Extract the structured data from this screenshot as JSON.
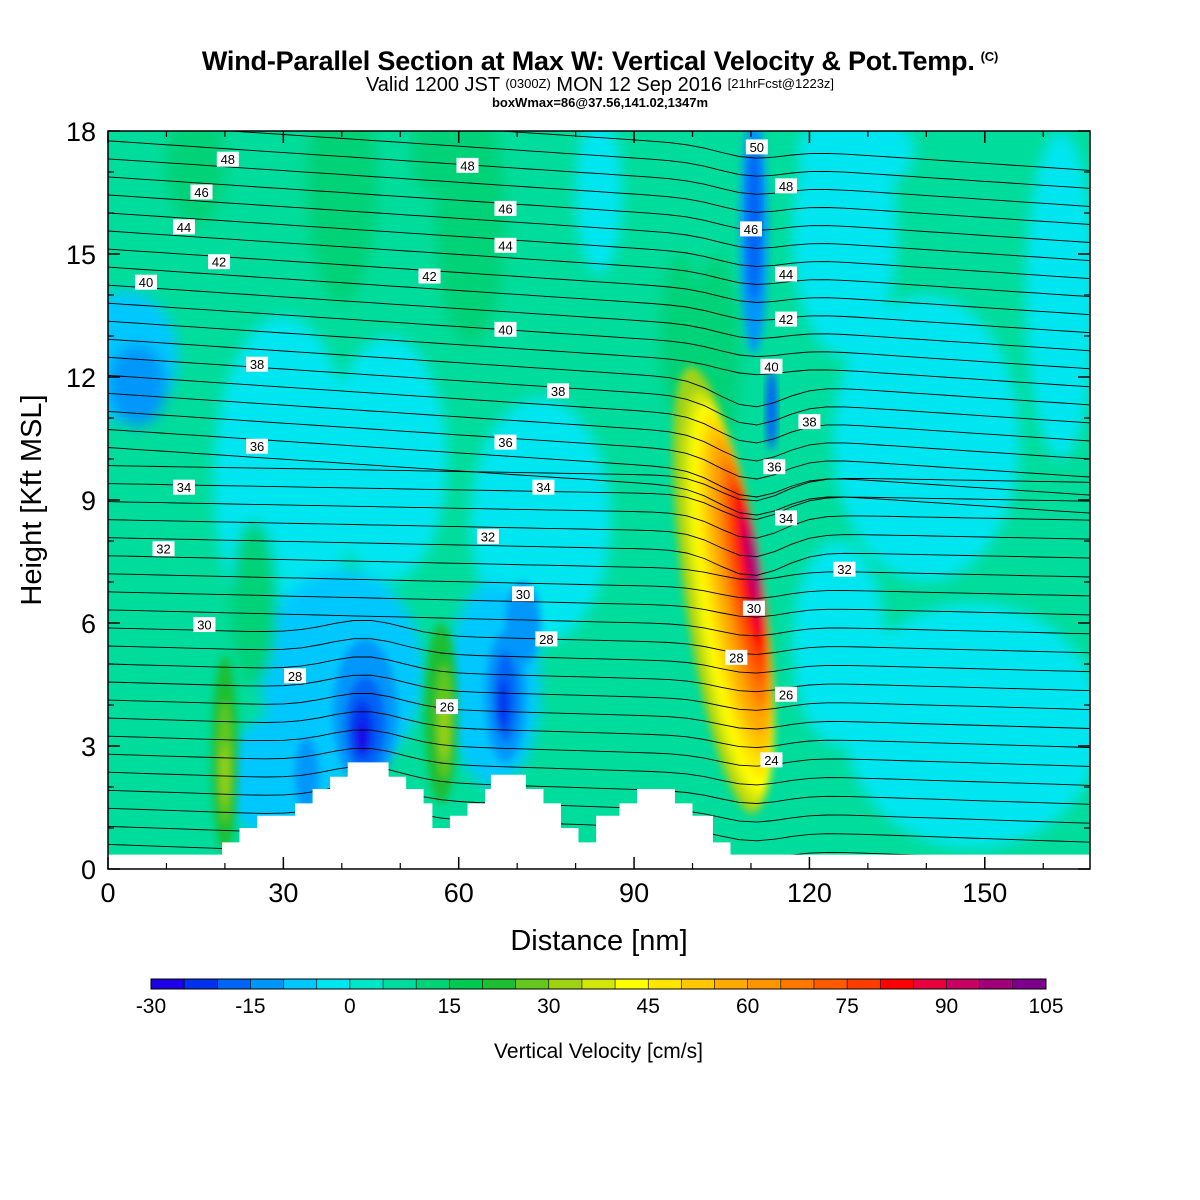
{
  "header": {
    "title": "Wind-Parallel Section at Max W: Vertical Velocity & Pot.Temp.",
    "copyright": "(C)",
    "valid_prefix": "Valid 1200 JST",
    "valid_utc": "(0300Z)",
    "valid_date": "MON 12 Sep 2016",
    "forecast": "[21hrFcst@1223z]",
    "boxwmax": "boxWmax=86@37.56,141.02,1347m"
  },
  "chart_data": {
    "type": "heatmap",
    "subtype": "cross-section contour fill with isentrope contour lines",
    "xlabel": "Distance [nm]",
    "ylabel": "Height [Kft MSL]",
    "xlim": [
      0,
      168
    ],
    "ylim": [
      0,
      18
    ],
    "xticks": [
      "0",
      "30",
      "60",
      "90",
      "120",
      "150"
    ],
    "yticks": [
      "0",
      "3",
      "6",
      "9",
      "12",
      "15",
      "18"
    ],
    "colorbar": {
      "label": "Vertical Velocity [cm/s]",
      "tick_labels": [
        "-30",
        "-15",
        "0",
        "15",
        "30",
        "45",
        "60",
        "75",
        "90",
        "105"
      ],
      "levels": [
        -30,
        -25,
        -20,
        -15,
        -10,
        -5,
        0,
        5,
        10,
        15,
        20,
        25,
        30,
        35,
        40,
        45,
        50,
        55,
        60,
        65,
        70,
        75,
        80,
        85,
        90,
        95,
        100,
        105
      ],
      "colors": [
        "#1e00e6",
        "#0032f0",
        "#0064f5",
        "#0096fa",
        "#00c8ff",
        "#00e6f0",
        "#00e6c8",
        "#00dc9b",
        "#00d278",
        "#00c850",
        "#1ebe32",
        "#64c81e",
        "#a0d214",
        "#d2e60a",
        "#ffff00",
        "#ffe600",
        "#ffc800",
        "#ffaa00",
        "#ff9600",
        "#ff7800",
        "#ff5a00",
        "#ff3c00",
        "#ff0000",
        "#e6003c",
        "#c80064",
        "#a00078",
        "#7d008c"
      ]
    },
    "updraft_core": {
      "x_nm": 110,
      "height_kft": 7,
      "max_cm_s": 105
    },
    "downdraft_cores": [
      {
        "x_nm": 44,
        "height_kft": 3.6,
        "min_cm_s": -30
      },
      {
        "x_nm": 68,
        "height_kft": 4.2,
        "min_cm_s": -25
      },
      {
        "x_nm": 110,
        "height_kft": 15.5,
        "min_cm_s": -20
      },
      {
        "x_nm": 5,
        "height_kft": 12,
        "min_cm_s": -10
      }
    ],
    "terrain_kft": [
      [
        0,
        0.35
      ],
      [
        19.5,
        0.35
      ],
      [
        19.5,
        0.65
      ],
      [
        22.5,
        0.65
      ],
      [
        22.5,
        1.0
      ],
      [
        25.5,
        1.0
      ],
      [
        25.5,
        1.3
      ],
      [
        32,
        1.3
      ],
      [
        32,
        1.6
      ],
      [
        35,
        1.6
      ],
      [
        35,
        1.95
      ],
      [
        38,
        1.95
      ],
      [
        38,
        2.25
      ],
      [
        41,
        2.25
      ],
      [
        41,
        2.6
      ],
      [
        48,
        2.6
      ],
      [
        48,
        2.25
      ],
      [
        51,
        2.25
      ],
      [
        51,
        1.95
      ],
      [
        54,
        1.95
      ],
      [
        54,
        1.6
      ],
      [
        55.5,
        1.6
      ],
      [
        55.5,
        1.0
      ],
      [
        58.5,
        1.0
      ],
      [
        58.5,
        1.3
      ],
      [
        61.5,
        1.3
      ],
      [
        61.5,
        1.6
      ],
      [
        64.5,
        1.6
      ],
      [
        64.5,
        1.95
      ],
      [
        65.5,
        1.95
      ],
      [
        65.5,
        2.3
      ],
      [
        71.5,
        2.3
      ],
      [
        71.5,
        1.95
      ],
      [
        74.5,
        1.95
      ],
      [
        74.5,
        1.6
      ],
      [
        77.5,
        1.6
      ],
      [
        77.5,
        1.0
      ],
      [
        80.5,
        1.0
      ],
      [
        80.5,
        0.65
      ],
      [
        83.5,
        0.65
      ],
      [
        83.5,
        1.3
      ],
      [
        87.5,
        1.3
      ],
      [
        87.5,
        1.6
      ],
      [
        90.5,
        1.6
      ],
      [
        90.5,
        1.95
      ],
      [
        97,
        1.95
      ],
      [
        97,
        1.6
      ],
      [
        100,
        1.6
      ],
      [
        100,
        1.3
      ],
      [
        103.5,
        1.3
      ],
      [
        103.5,
        0.65
      ],
      [
        106.5,
        0.65
      ],
      [
        106.5,
        0.35
      ],
      [
        168,
        0.35
      ]
    ],
    "isentrope_labels": [
      {
        "text": "48",
        "x": 20.5,
        "y": 17.3
      },
      {
        "text": "46",
        "x": 16,
        "y": 16.5
      },
      {
        "text": "44",
        "x": 13,
        "y": 15.65
      },
      {
        "text": "42",
        "x": 19,
        "y": 14.8
      },
      {
        "text": "40",
        "x": 6.5,
        "y": 14.3
      },
      {
        "text": "38",
        "x": 25.5,
        "y": 12.3
      },
      {
        "text": "36",
        "x": 25.5,
        "y": 10.3
      },
      {
        "text": "34",
        "x": 13,
        "y": 9.3
      },
      {
        "text": "32",
        "x": 9.5,
        "y": 7.8
      },
      {
        "text": "30",
        "x": 16.5,
        "y": 5.95
      },
      {
        "text": "28",
        "x": 32,
        "y": 4.7
      },
      {
        "text": "48",
        "x": 61.5,
        "y": 17.15
      },
      {
        "text": "46",
        "x": 68,
        "y": 16.1
      },
      {
        "text": "44",
        "x": 68,
        "y": 15.2
      },
      {
        "text": "42",
        "x": 55,
        "y": 14.45
      },
      {
        "text": "40",
        "x": 68,
        "y": 13.15
      },
      {
        "text": "38",
        "x": 77,
        "y": 11.65
      },
      {
        "text": "36",
        "x": 68,
        "y": 10.4
      },
      {
        "text": "34",
        "x": 74.5,
        "y": 9.3
      },
      {
        "text": "32",
        "x": 65,
        "y": 8.1
      },
      {
        "text": "30",
        "x": 71,
        "y": 6.7
      },
      {
        "text": "28",
        "x": 75,
        "y": 5.6
      },
      {
        "text": "26",
        "x": 58,
        "y": 3.95
      },
      {
        "text": "50",
        "x": 111,
        "y": 17.6
      },
      {
        "text": "48",
        "x": 116,
        "y": 16.65
      },
      {
        "text": "46",
        "x": 110,
        "y": 15.6
      },
      {
        "text": "44",
        "x": 116,
        "y": 14.5
      },
      {
        "text": "42",
        "x": 116,
        "y": 13.4
      },
      {
        "text": "40",
        "x": 113.5,
        "y": 12.25
      },
      {
        "text": "38",
        "x": 120,
        "y": 10.9
      },
      {
        "text": "36",
        "x": 114,
        "y": 9.8
      },
      {
        "text": "34",
        "x": 116,
        "y": 8.55
      },
      {
        "text": "32",
        "x": 126,
        "y": 7.3
      },
      {
        "text": "30",
        "x": 110.5,
        "y": 6.35
      },
      {
        "text": "28",
        "x": 107.5,
        "y": 5.15
      },
      {
        "text": "26",
        "x": 116,
        "y": 4.25
      },
      {
        "text": "24",
        "x": 113.5,
        "y": 2.65
      }
    ]
  }
}
